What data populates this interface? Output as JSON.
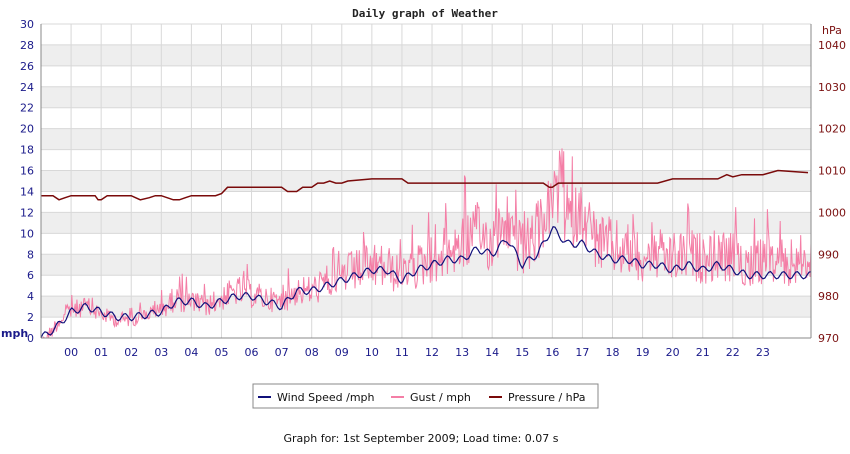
{
  "chart_data": {
    "type": "line",
    "title": "Daily graph of Weather",
    "footer": "Graph for: 1st September 2009; Load time: 0.07 s",
    "left_unit": "mph",
    "right_unit": "hPa",
    "ylim_left": [
      0,
      30
    ],
    "ylim_right": [
      970,
      1045
    ],
    "yticks_left": [
      "0",
      "2",
      "4",
      "6",
      "8",
      "10",
      "12",
      "14",
      "16",
      "18",
      "20",
      "22",
      "24",
      "26",
      "28",
      "30"
    ],
    "yticks_right": [
      "970",
      "980",
      "990",
      "1000",
      "1010",
      "1020",
      "1030",
      "1040"
    ],
    "xlim": [
      -1,
      24.6
    ],
    "x_tick_labels": [
      "00",
      "01",
      "02",
      "03",
      "04",
      "05",
      "06",
      "07",
      "08",
      "09",
      "10",
      "11",
      "12",
      "13",
      "14",
      "15",
      "16",
      "17",
      "18",
      "19",
      "20",
      "21",
      "22",
      "23"
    ],
    "grid": true,
    "legend_position": "bottom-center",
    "colors": {
      "wind": "#10107a",
      "gust": "#f47ea6",
      "pressure": "#7a0a0a",
      "band": "#eeeeee",
      "grid": "#d8d8d8"
    },
    "series": [
      {
        "name": "Wind Speed /mph",
        "axis": "left",
        "x": [
          -1,
          -0.5,
          0,
          0.5,
          1,
          1.5,
          2,
          2.5,
          3,
          3.5,
          4,
          4.5,
          5,
          5.5,
          6,
          6.5,
          7,
          7.5,
          8,
          8.5,
          9,
          9.5,
          10,
          10.5,
          11,
          11.5,
          12,
          12.5,
          13,
          13.5,
          14,
          14.5,
          15,
          15.5,
          16,
          16.5,
          17,
          17.5,
          18,
          18.5,
          19,
          19.5,
          20,
          20.5,
          21,
          21.5,
          22,
          22.5,
          23,
          23.5,
          24.5
        ],
        "values": [
          0,
          1,
          2.5,
          3,
          2.5,
          2,
          2,
          2.2,
          2.5,
          3.5,
          3.5,
          3,
          3.5,
          4,
          4,
          3.5,
          3,
          4.5,
          4.5,
          5,
          5.5,
          6,
          6.5,
          6.5,
          5.5,
          6.5,
          7,
          7.5,
          7.5,
          8.5,
          8,
          9.5,
          7,
          8,
          10.5,
          9,
          9,
          8,
          7.5,
          7.5,
          7,
          7,
          6.5,
          7,
          6.5,
          7,
          6.5,
          6,
          6,
          6,
          6
        ]
      },
      {
        "name": "Gust / mph",
        "axis": "left",
        "x": [
          -1,
          -0.5,
          0,
          0.5,
          1,
          1.5,
          2,
          2.5,
          3,
          3.5,
          4,
          4.5,
          5,
          5.5,
          6,
          6.5,
          7,
          7.5,
          8,
          8.5,
          9,
          9.5,
          10,
          10.5,
          11,
          11.5,
          12,
          12.5,
          13,
          13.5,
          14,
          14.5,
          15,
          15.5,
          16,
          16.5,
          17,
          17.5,
          18,
          18.5,
          19,
          19.5,
          20,
          20.5,
          21,
          21.5,
          22,
          22.5,
          23,
          23.5,
          24.5
        ],
        "values": [
          0,
          2,
          3.5,
          4,
          3,
          2.5,
          2.5,
          3,
          3.5,
          5,
          4.5,
          4,
          5,
          6,
          5.5,
          5,
          4.5,
          6,
          6,
          7,
          8,
          8.5,
          9,
          9,
          7.5,
          9,
          10,
          11,
          12,
          13,
          12,
          14,
          11,
          13,
          16,
          14,
          15,
          12,
          11.5,
          11,
          10.5,
          10.5,
          10,
          10.5,
          10,
          10.5,
          10,
          9.5,
          9.5,
          9.5,
          9.5
        ],
        "noise": 4.5
      },
      {
        "name": "Pressure / hPa",
        "axis": "right",
        "x": [
          -1,
          -0.6,
          -0.4,
          -0.2,
          0,
          0.8,
          0.9,
          1,
          1.1,
          1.2,
          2,
          2.3,
          2.6,
          2.8,
          3,
          3.4,
          3.6,
          3.8,
          4,
          4.8,
          5,
          5.2,
          6,
          7,
          7.2,
          7.5,
          7.7,
          8,
          8.2,
          8.4,
          8.6,
          8.8,
          9,
          9.2,
          10,
          11,
          11.2,
          11.5,
          12,
          13,
          14,
          15,
          15.7,
          15.9,
          16,
          16.2,
          17,
          18,
          19,
          19.5,
          20,
          21,
          21.5,
          21.8,
          22,
          22.3,
          23,
          23.5,
          24.5
        ],
        "values": [
          1004,
          1004,
          1003,
          1003.5,
          1004,
          1004,
          1003,
          1003,
          1003.5,
          1004,
          1004,
          1003,
          1003.5,
          1004,
          1004,
          1003,
          1003,
          1003.5,
          1004,
          1004,
          1004.5,
          1006,
          1006,
          1006,
          1005,
          1005,
          1006,
          1006,
          1007,
          1007,
          1007.5,
          1007,
          1007,
          1007.5,
          1008,
          1008,
          1007,
          1007,
          1007,
          1007,
          1007,
          1007,
          1007,
          1006,
          1006,
          1007,
          1007,
          1007,
          1007,
          1007,
          1008,
          1008,
          1008,
          1009,
          1008.5,
          1009,
          1009,
          1010,
          1009.5
        ]
      }
    ]
  }
}
